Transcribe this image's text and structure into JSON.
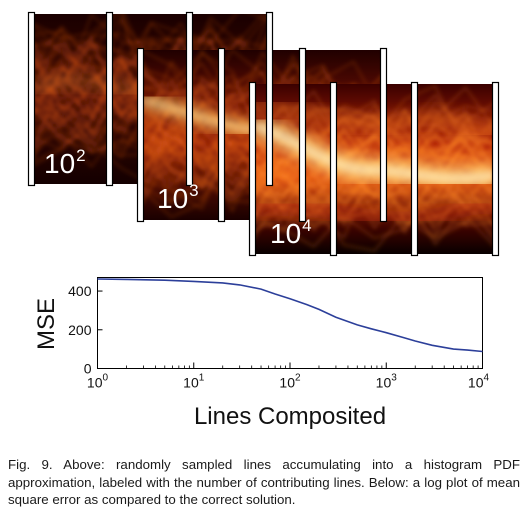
{
  "panels": [
    {
      "base": "10",
      "exponent": "2"
    },
    {
      "base": "10",
      "exponent": "3"
    },
    {
      "base": "10",
      "exponent": "4"
    }
  ],
  "chart_data": {
    "type": "line",
    "x_scale": "log",
    "xlabel": "Lines Composited",
    "ylabel": "MSE",
    "xlim": [
      1,
      10000
    ],
    "ylim": [
      0,
      470
    ],
    "x_ticks": [
      {
        "base": "10",
        "exponent": "0"
      },
      {
        "base": "10",
        "exponent": "1"
      },
      {
        "base": "10",
        "exponent": "2"
      },
      {
        "base": "10",
        "exponent": "3"
      },
      {
        "base": "10",
        "exponent": "4"
      }
    ],
    "y_ticks": [
      "0",
      "200",
      "400"
    ],
    "grid": false,
    "series_color": "#2c3f9a",
    "x": [
      1,
      2,
      5,
      10,
      20,
      30,
      50,
      70,
      100,
      150,
      200,
      300,
      500,
      700,
      1000,
      1500,
      2000,
      3000,
      5000,
      7000,
      10000
    ],
    "y": [
      462,
      460,
      456,
      450,
      442,
      432,
      410,
      385,
      360,
      330,
      305,
      265,
      225,
      205,
      185,
      160,
      142,
      120,
      100,
      95,
      88
    ]
  },
  "caption": "Fig. 9.  Above: randomly sampled lines accumulating into a histogram PDF approximation, labeled with the number of contributing lines.  Below: a log plot of mean square error as compared to the correct solution."
}
